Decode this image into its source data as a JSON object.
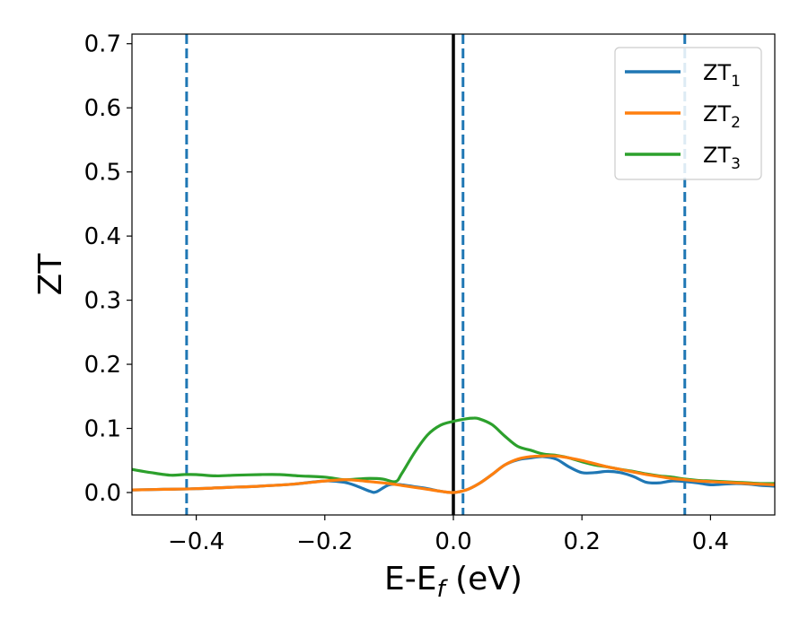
{
  "chart_data": {
    "type": "line",
    "xlabel": "E-E",
    "xlabel_sub": "f",
    "xlabel_unit": " (eV)",
    "ylabel": "ZT",
    "xlim": [
      -0.5,
      0.5
    ],
    "ylim": [
      -0.035,
      0.715
    ],
    "xticks": [
      -0.4,
      -0.2,
      0.0,
      0.2,
      0.4
    ],
    "xtick_labels": [
      "−0.4",
      "−0.2",
      "0.0",
      "0.2",
      "0.4"
    ],
    "yticks": [
      0.0,
      0.1,
      0.2,
      0.3,
      0.4,
      0.5,
      0.6,
      0.7
    ],
    "ytick_labels": [
      "0.0",
      "0.1",
      "0.2",
      "0.3",
      "0.4",
      "0.5",
      "0.6",
      "0.7"
    ],
    "grid": false,
    "legend_position": "top-right",
    "vlines": [
      {
        "x": -0.415,
        "style": "dashed",
        "color": "#1f77b4"
      },
      {
        "x": 0.0,
        "style": "solid",
        "color": "#000000"
      },
      {
        "x": 0.015,
        "style": "dashed",
        "color": "#1f77b4"
      },
      {
        "x": 0.36,
        "style": "dashed",
        "color": "#1f77b4"
      }
    ],
    "series": [
      {
        "name": "ZT",
        "name_sub": "1",
        "color": "#1f77b4",
        "x": [
          -0.5,
          -0.45,
          -0.4,
          -0.35,
          -0.3,
          -0.25,
          -0.2,
          -0.17,
          -0.15,
          -0.13,
          -0.12,
          -0.1,
          -0.08,
          -0.06,
          -0.04,
          -0.02,
          0.0,
          0.02,
          0.04,
          0.06,
          0.08,
          0.1,
          0.12,
          0.14,
          0.16,
          0.18,
          0.2,
          0.22,
          0.24,
          0.26,
          0.28,
          0.3,
          0.32,
          0.34,
          0.36,
          0.38,
          0.4,
          0.42,
          0.44,
          0.46,
          0.48,
          0.5
        ],
        "values": [
          0.004,
          0.005,
          0.006,
          0.008,
          0.01,
          0.013,
          0.018,
          0.016,
          0.01,
          0.002,
          0.001,
          0.012,
          0.012,
          0.009,
          0.006,
          0.002,
          0.0,
          0.004,
          0.014,
          0.028,
          0.043,
          0.051,
          0.054,
          0.056,
          0.052,
          0.04,
          0.031,
          0.031,
          0.033,
          0.031,
          0.025,
          0.016,
          0.015,
          0.018,
          0.017,
          0.015,
          0.012,
          0.013,
          0.014,
          0.013,
          0.011,
          0.01
        ]
      },
      {
        "name": "ZT",
        "name_sub": "2",
        "color": "#ff7f0e",
        "x": [
          -0.5,
          -0.45,
          -0.4,
          -0.35,
          -0.3,
          -0.25,
          -0.2,
          -0.17,
          -0.15,
          -0.13,
          -0.1,
          -0.08,
          -0.06,
          -0.04,
          -0.02,
          0.0,
          0.02,
          0.04,
          0.06,
          0.08,
          0.1,
          0.12,
          0.14,
          0.16,
          0.18,
          0.2,
          0.22,
          0.24,
          0.26,
          0.28,
          0.3,
          0.32,
          0.34,
          0.36,
          0.38,
          0.4,
          0.42,
          0.44,
          0.46,
          0.48,
          0.5
        ],
        "values": [
          0.004,
          0.005,
          0.006,
          0.008,
          0.01,
          0.013,
          0.018,
          0.02,
          0.019,
          0.017,
          0.014,
          0.011,
          0.008,
          0.005,
          0.002,
          0.0,
          0.004,
          0.014,
          0.028,
          0.043,
          0.052,
          0.056,
          0.057,
          0.057,
          0.054,
          0.05,
          0.045,
          0.04,
          0.036,
          0.032,
          0.028,
          0.025,
          0.022,
          0.02,
          0.018,
          0.017,
          0.016,
          0.015,
          0.014,
          0.013,
          0.012
        ]
      },
      {
        "name": "ZT",
        "name_sub": "3",
        "color": "#2ca02c",
        "x": [
          -0.5,
          -0.47,
          -0.44,
          -0.42,
          -0.4,
          -0.37,
          -0.34,
          -0.3,
          -0.27,
          -0.24,
          -0.2,
          -0.17,
          -0.15,
          -0.13,
          -0.11,
          -0.09,
          -0.08,
          -0.06,
          -0.04,
          -0.02,
          0.0,
          0.02,
          0.03,
          0.04,
          0.06,
          0.08,
          0.1,
          0.12,
          0.14,
          0.16,
          0.18,
          0.2,
          0.22,
          0.24,
          0.26,
          0.28,
          0.3,
          0.32,
          0.34,
          0.36,
          0.38,
          0.4,
          0.42,
          0.44,
          0.46,
          0.48,
          0.5
        ],
        "values": [
          0.036,
          0.031,
          0.027,
          0.028,
          0.028,
          0.026,
          0.027,
          0.028,
          0.028,
          0.026,
          0.024,
          0.02,
          0.021,
          0.022,
          0.021,
          0.017,
          0.03,
          0.063,
          0.09,
          0.105,
          0.111,
          0.115,
          0.116,
          0.115,
          0.106,
          0.088,
          0.072,
          0.066,
          0.06,
          0.058,
          0.054,
          0.048,
          0.043,
          0.04,
          0.036,
          0.033,
          0.029,
          0.026,
          0.024,
          0.021,
          0.019,
          0.018,
          0.017,
          0.016,
          0.015,
          0.014,
          0.014
        ]
      }
    ]
  }
}
